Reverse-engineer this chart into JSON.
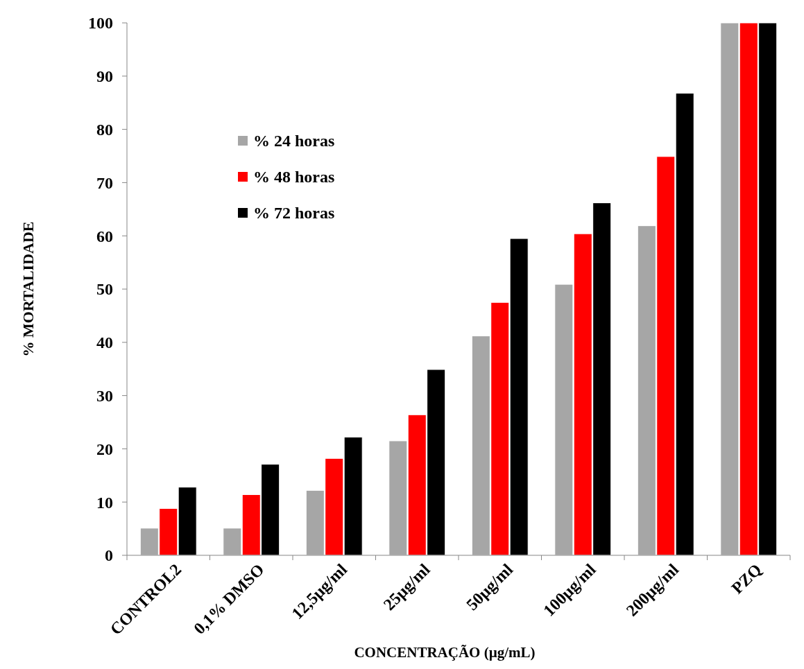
{
  "chart_data": {
    "type": "bar",
    "xlabel": "CONCENTRAÇÃO (µg/mL)",
    "ylabel": "% MORTALIDADE",
    "categories": [
      "CONTROL2",
      "0,1% DMSO",
      "12,5µg/ml",
      "25µg/ml",
      "50µg/ml",
      "100µg/ml",
      "200µg/ml",
      "PZQ"
    ],
    "series": [
      {
        "name": "% 24 horas",
        "color": "#a6a6a6",
        "values": [
          5.1,
          5.1,
          12.2,
          21.5,
          41.2,
          50.9,
          61.9,
          100
        ]
      },
      {
        "name": "% 48 horas",
        "color": "#ff0000",
        "values": [
          8.8,
          11.4,
          18.2,
          26.4,
          47.5,
          60.4,
          74.9,
          100
        ]
      },
      {
        "name": "% 72 horas",
        "color": "#000000",
        "values": [
          12.8,
          17.1,
          22.2,
          34.9,
          59.5,
          66.2,
          86.8,
          100
        ]
      }
    ],
    "ylim": [
      0,
      100
    ],
    "yticks": [
      0,
      10,
      20,
      30,
      40,
      50,
      60,
      70,
      80,
      90,
      100
    ],
    "grid": false,
    "legend": "top left"
  }
}
